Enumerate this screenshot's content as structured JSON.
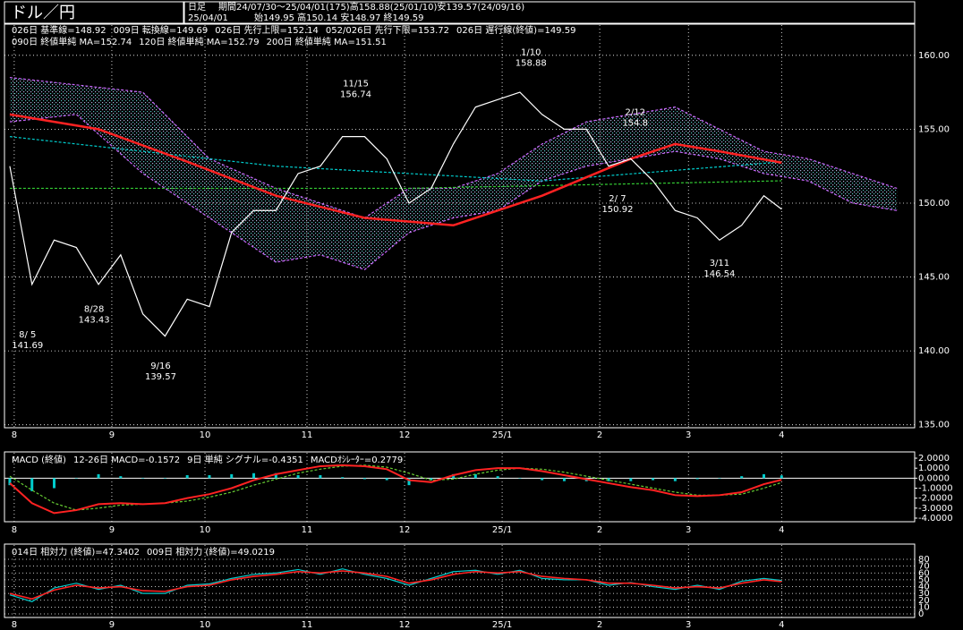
{
  "header": {
    "title": "ドル／円",
    "period_label": "日足",
    "period": "期間24/07/30～25/04/01(175)高158.88(25/01/10)安139.57(24/09/16)",
    "date": "25/04/01",
    "ohlc": "始149.95 高150.14 安148.97 終149.59"
  },
  "chart_data": [
    {
      "type": "line",
      "xlim": [
        -1.2,
        204
      ],
      "xticks": [
        {
          "value": 1,
          "label": "8"
        },
        {
          "value": 23,
          "label": "9"
        },
        {
          "value": 44,
          "label": "10"
        },
        {
          "value": 67,
          "label": "11"
        },
        {
          "value": 89,
          "label": "12"
        },
        {
          "value": 111,
          "label": "25/1"
        },
        {
          "value": 133,
          "label": "2"
        },
        {
          "value": 153,
          "label": "3"
        },
        {
          "value": 174,
          "label": "4"
        }
      ],
      "ylim": [
        134.8,
        161.2
      ],
      "yticks": [
        {
          "value": 160,
          "label": "160.00"
        },
        {
          "value": 155,
          "label": "155.00"
        },
        {
          "value": 150,
          "label": "150.00"
        },
        {
          "value": 145,
          "label": "145.00"
        },
        {
          "value": 140,
          "label": "140.00"
        },
        {
          "value": 135,
          "label": "135.00"
        }
      ],
      "grid": true,
      "legend": [
        {
          "text": "026日 基準線=148.92",
          "color": "#00ffff",
          "row": 0
        },
        {
          "text": "009日 転換線=149.69",
          "color": "#ff3366",
          "row": 0
        },
        {
          "text": "026日 先行上限=152.14",
          "color": "#ff66ff",
          "row": 0
        },
        {
          "text": "052/026日 先行下限=153.72",
          "color": "#ff66ff",
          "row": 0
        },
        {
          "text": "026日 遅行線(終値)=149.59",
          "color": "#66ff33",
          "row": 0
        },
        {
          "text": "090日 終値単純 MA=152.74",
          "color": "#ff3333",
          "row": 1
        },
        {
          "text": "120日 終値単純 MA=152.79",
          "color": "#00ffff",
          "row": 1
        },
        {
          "text": "200日 終値単純 MA=151.51",
          "color": "#66ff33",
          "row": 1
        }
      ],
      "series": [
        {
          "style": "cloud",
          "color": "#cc66ff",
          "x": [
            0,
            15,
            30,
            45,
            60,
            70,
            80,
            90,
            100,
            110,
            120,
            130,
            140,
            150,
            160,
            170,
            180,
            190,
            200
          ],
          "values": [
            158.5,
            158,
            157.5,
            153,
            151,
            150,
            149,
            151,
            151,
            152,
            154,
            155.5,
            156,
            156.5,
            155,
            153.5,
            153,
            152,
            151
          ]
        },
        {
          "style": "cloud",
          "color": "#cc66ff",
          "x": [
            0,
            15,
            30,
            45,
            60,
            70,
            80,
            90,
            100,
            110,
            120,
            130,
            140,
            150,
            160,
            170,
            180,
            190,
            200
          ],
          "values": [
            155.5,
            156,
            152,
            149,
            146,
            146.5,
            145.5,
            148,
            149,
            149.5,
            151.5,
            152.5,
            153,
            153.5,
            153,
            152,
            151.5,
            150,
            149.5
          ]
        },
        {
          "style": "line",
          "color": "#00cccc",
          "dash": true,
          "x": [
            0,
            60,
            120,
            174
          ],
          "values": [
            154.5,
            152.5,
            151.5,
            152.79
          ]
        },
        {
          "style": "line",
          "color": "#33cc33",
          "dash": true,
          "x": [
            0,
            90,
            174
          ],
          "values": [
            151,
            151,
            151.51
          ]
        },
        {
          "style": "line",
          "color": "#ff2222",
          "width": 2.5,
          "x": [
            0,
            20,
            40,
            60,
            80,
            100,
            120,
            140,
            150,
            160,
            174
          ],
          "values": [
            156,
            155,
            152.8,
            150.5,
            149,
            148.5,
            150.5,
            153,
            154,
            153.5,
            152.74
          ]
        },
        {
          "style": "line",
          "color": "#ffffff",
          "x": [
            0,
            5,
            10,
            15,
            20,
            25,
            30,
            35,
            40,
            45,
            50,
            55,
            60,
            65,
            70,
            75,
            80,
            85,
            90,
            95,
            100,
            105,
            110,
            115,
            120,
            125,
            130,
            135,
            140,
            145,
            150,
            155,
            160,
            165,
            170,
            174
          ],
          "values": [
            152.5,
            144.5,
            147.5,
            147,
            144.5,
            146.5,
            142.5,
            141,
            143.5,
            143,
            148,
            149.5,
            149.5,
            152,
            152.5,
            154.5,
            154.5,
            153,
            150,
            151,
            154,
            156.5,
            157,
            157.5,
            156,
            155,
            155,
            152.5,
            153,
            151.5,
            149.5,
            149,
            147.5,
            148.5,
            150.5,
            149.59
          ]
        }
      ],
      "annotations": [
        {
          "x": 4,
          "date": "8/ 5",
          "value": 141.69,
          "color": "#00ffff",
          "position": "below"
        },
        {
          "x": 19,
          "date": "8/28",
          "value": 143.43,
          "color": "#00ffff",
          "position": "below"
        },
        {
          "x": 34,
          "date": "9/16",
          "value": 139.57,
          "color": "#00ffff",
          "position": "below"
        },
        {
          "x": 78,
          "date": "11/15",
          "value": 156.74,
          "color": "#ff3333",
          "position": "above"
        },
        {
          "x": 117.5,
          "date": "1/10",
          "value": 158.88,
          "color": "#ff3333",
          "position": "above"
        },
        {
          "x": 137,
          "date": "2/ 7",
          "value": 150.92,
          "color": "#00ffff",
          "position": "below"
        },
        {
          "x": 141,
          "date": "2/12",
          "value": 154.8,
          "color": "#ff3333",
          "position": "above"
        },
        {
          "x": 160,
          "date": "3/11",
          "value": 146.54,
          "color": "#00ffff",
          "position": "below"
        }
      ]
    },
    {
      "type": "line",
      "xlim": [
        -1.2,
        204
      ],
      "xticks": [
        {
          "value": 1,
          "label": "8"
        },
        {
          "value": 23,
          "label": "9"
        },
        {
          "value": 44,
          "label": "10"
        },
        {
          "value": 67,
          "label": "11"
        },
        {
          "value": 89,
          "label": "12"
        },
        {
          "value": 111,
          "label": "25/1"
        },
        {
          "value": 133,
          "label": "2"
        },
        {
          "value": 153,
          "label": "3"
        },
        {
          "value": 174,
          "label": "4"
        }
      ],
      "ylim": [
        -4.36,
        2.45
      ],
      "yticks": [
        {
          "value": 2,
          "label": "2.0000"
        },
        {
          "value": 1,
          "label": "1.0000"
        },
        {
          "value": 0,
          "label": "0.0000"
        },
        {
          "value": -1,
          "label": "-1.0000"
        },
        {
          "value": -2,
          "label": "-2.0000"
        },
        {
          "value": -3,
          "label": "-3.0000"
        },
        {
          "value": -4,
          "label": "-4.0000"
        }
      ],
      "grid": false,
      "zero_line": true,
      "legend": [
        {
          "text": "MACD (終値)",
          "color": "#ffffff",
          "row": 0
        },
        {
          "text": "12-26日 MACD=-0.1572",
          "color": "#ff3333",
          "row": 0
        },
        {
          "text": "9日 単純 シグナル=-0.4351",
          "color": "#66ff33",
          "row": 0
        },
        {
          "text": "MACDｵｼﾚｰﾀｰ=0.2779",
          "color": "#00ffff",
          "row": 0
        }
      ],
      "series": [
        {
          "style": "histogram",
          "color": "#00cccc",
          "x": [
            0,
            5,
            10,
            15,
            20,
            25,
            30,
            35,
            40,
            45,
            50,
            55,
            60,
            65,
            70,
            75,
            80,
            85,
            90,
            95,
            100,
            105,
            110,
            115,
            120,
            125,
            130,
            135,
            140,
            145,
            150,
            155,
            160,
            165,
            170,
            174
          ],
          "values": [
            -0.7,
            -1.3,
            -1,
            0,
            0.4,
            0.2,
            0,
            0,
            0.3,
            0.3,
            0.4,
            0.5,
            0.5,
            0.3,
            0.3,
            0.1,
            -0.1,
            -0.2,
            -0.7,
            -0.2,
            0.4,
            0.4,
            0.2,
            0,
            -0.2,
            -0.3,
            -0.3,
            -0.3,
            -0.3,
            -0.2,
            -0.3,
            -0.1,
            0,
            0.2,
            0.4,
            0.2779
          ]
        },
        {
          "style": "line",
          "color": "#66cc33",
          "dash": true,
          "x": [
            0,
            5,
            10,
            15,
            20,
            25,
            30,
            35,
            40,
            45,
            50,
            55,
            60,
            65,
            70,
            75,
            80,
            85,
            90,
            95,
            100,
            105,
            110,
            115,
            120,
            125,
            130,
            135,
            140,
            145,
            150,
            155,
            160,
            165,
            170,
            174
          ],
          "values": [
            0.2,
            -1.2,
            -2.5,
            -3.2,
            -3,
            -2.7,
            -2.6,
            -2.5,
            -2.3,
            -1.9,
            -1.4,
            -0.7,
            -0.1,
            0.5,
            0.9,
            1.2,
            1.3,
            1.1,
            0.5,
            -0.2,
            -0.1,
            0.4,
            0.8,
            1,
            0.9,
            0.6,
            0.2,
            -0.2,
            -0.6,
            -1,
            -1.4,
            -1.7,
            -1.7,
            -1.6,
            -1,
            -0.4351
          ]
        },
        {
          "style": "line",
          "color": "#ff2222",
          "width": 2,
          "x": [
            0,
            5,
            10,
            15,
            20,
            25,
            30,
            35,
            40,
            45,
            50,
            55,
            60,
            65,
            70,
            75,
            80,
            85,
            90,
            95,
            100,
            105,
            110,
            115,
            120,
            125,
            130,
            135,
            140,
            145,
            150,
            155,
            160,
            165,
            170,
            174
          ],
          "values": [
            -0.5,
            -2.5,
            -3.5,
            -3.2,
            -2.6,
            -2.5,
            -2.6,
            -2.5,
            -2,
            -1.6,
            -1,
            -0.2,
            0.4,
            0.8,
            1.2,
            1.3,
            1.2,
            0.9,
            -0.2,
            -0.4,
            0.3,
            0.8,
            1,
            1,
            0.7,
            0.3,
            -0.1,
            -0.5,
            -0.9,
            -1.2,
            -1.7,
            -1.8,
            -1.7,
            -1.4,
            -0.6,
            -0.1572
          ]
        }
      ]
    },
    {
      "type": "line",
      "xlim": [
        -1.2,
        204
      ],
      "xticks": [
        {
          "value": 1,
          "label": "8"
        },
        {
          "value": 23,
          "label": "9"
        },
        {
          "value": 44,
          "label": "10"
        },
        {
          "value": 67,
          "label": "11"
        },
        {
          "value": 89,
          "label": "12"
        },
        {
          "value": 111,
          "label": "25/1"
        },
        {
          "value": 133,
          "label": "2"
        },
        {
          "value": 153,
          "label": "3"
        },
        {
          "value": 174,
          "label": "4"
        }
      ],
      "ylim": [
        -5.2,
        86.6
      ],
      "yticks": [
        80,
        70,
        60,
        50,
        40,
        30,
        20,
        10,
        0
      ],
      "grid": true,
      "legend": [
        {
          "text": "014日 相対力 (終値)=47.3402",
          "color": "#ff3333",
          "row": 0
        },
        {
          "text": "009日 相対力 (終値)=49.0219",
          "color": "#00ffff",
          "row": 0
        }
      ],
      "series": [
        {
          "style": "line",
          "color": "#00cccc",
          "x": [
            0,
            5,
            10,
            15,
            20,
            25,
            30,
            35,
            40,
            45,
            50,
            55,
            60,
            65,
            70,
            75,
            80,
            85,
            90,
            95,
            100,
            105,
            110,
            115,
            120,
            125,
            130,
            135,
            140,
            145,
            150,
            155,
            160,
            165,
            170,
            174
          ],
          "values": [
            28,
            18,
            38,
            45,
            36,
            42,
            30,
            30,
            42,
            44,
            52,
            58,
            60,
            65,
            58,
            66,
            58,
            52,
            42,
            52,
            62,
            64,
            58,
            64,
            52,
            50,
            50,
            42,
            46,
            40,
            36,
            42,
            36,
            48,
            52,
            49.0219
          ]
        },
        {
          "style": "line",
          "color": "#ff2222",
          "width": 1.6,
          "x": [
            0,
            5,
            10,
            15,
            20,
            25,
            30,
            35,
            40,
            45,
            50,
            55,
            60,
            65,
            70,
            75,
            80,
            85,
            90,
            95,
            100,
            105,
            110,
            115,
            120,
            125,
            130,
            135,
            140,
            145,
            150,
            155,
            160,
            165,
            170,
            174
          ],
          "values": [
            30,
            22,
            35,
            42,
            38,
            40,
            34,
            33,
            40,
            42,
            50,
            55,
            58,
            62,
            60,
            63,
            60,
            55,
            45,
            50,
            58,
            62,
            60,
            62,
            55,
            52,
            50,
            45,
            45,
            42,
            38,
            40,
            38,
            45,
            50,
            47.3402
          ]
        }
      ]
    }
  ]
}
